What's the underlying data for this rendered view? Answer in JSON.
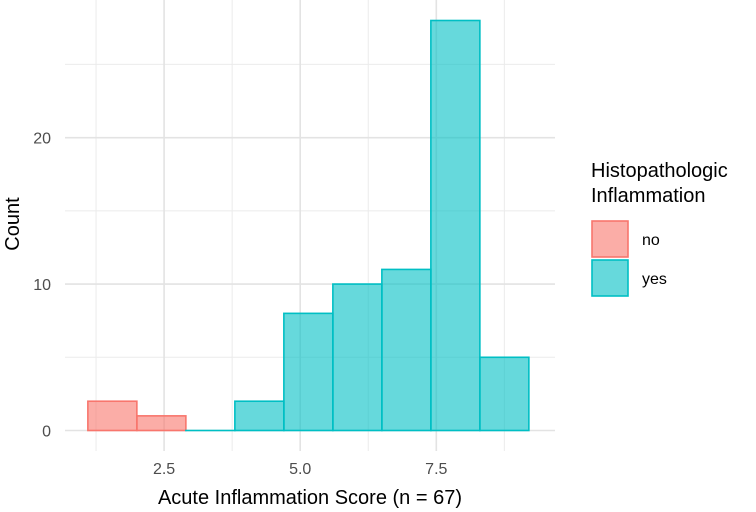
{
  "chart_data": {
    "type": "bar",
    "title": "",
    "xlabel": "Acute Inflammation Score  (n = 67)",
    "ylabel": "Count",
    "xlim": [
      0.68,
      9.68
    ],
    "ylim": [
      -1.4,
      29.4
    ],
    "x_ticks": [
      2.5,
      5.0,
      7.5
    ],
    "x_tick_labels": [
      "2.5",
      "5.0",
      "7.5"
    ],
    "y_ticks": [
      0,
      10,
      20
    ],
    "y_tick_labels": [
      "0",
      "10",
      "20"
    ],
    "grid": true,
    "bin_width": 0.9,
    "bins": [
      {
        "x0": 1.1,
        "x1": 2.0,
        "value": 2,
        "group": "no"
      },
      {
        "x0": 2.0,
        "x1": 2.9,
        "value": 1,
        "group": "no"
      },
      {
        "x0": 2.9,
        "x1": 3.8,
        "value": 0,
        "group": "yes"
      },
      {
        "x0": 3.8,
        "x1": 4.7,
        "value": 2,
        "group": "yes"
      },
      {
        "x0": 4.7,
        "x1": 5.6,
        "value": 8,
        "group": "yes"
      },
      {
        "x0": 5.6,
        "x1": 6.5,
        "value": 10,
        "group": "yes"
      },
      {
        "x0": 6.5,
        "x1": 7.4,
        "value": 11,
        "group": "yes"
      },
      {
        "x0": 7.4,
        "x1": 8.3,
        "value": 28,
        "group": "yes"
      },
      {
        "x0": 8.3,
        "x1": 9.2,
        "value": 5,
        "group": "yes"
      }
    ],
    "series": [
      {
        "name": "no",
        "fill": "#f8766d",
        "stroke": "#f8766d"
      },
      {
        "name": "yes",
        "fill": "#00bfc4",
        "stroke": "#00bfc4"
      }
    ],
    "legend": {
      "title_line1": "Histopathologic",
      "title_line2": "Inflammation",
      "position": "right"
    }
  }
}
